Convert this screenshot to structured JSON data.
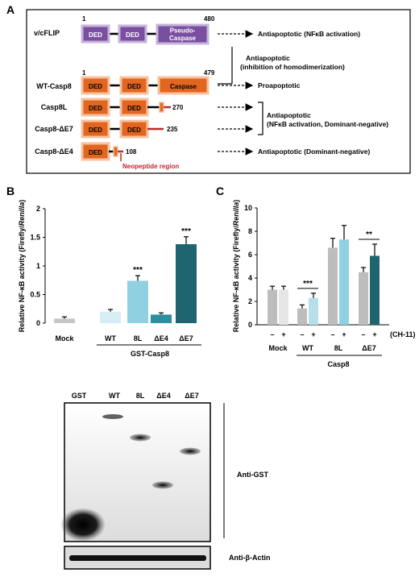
{
  "figure": {
    "panel_labels": {
      "a": "A",
      "b": "B",
      "c": "C"
    }
  },
  "panel_a": {
    "start_label": "1",
    "vflip_end": "480",
    "casp8_end": "479",
    "rows": [
      {
        "name": "v/cFLIP",
        "domains": [
          "DED",
          "DED",
          "Pseudo-\nCaspase"
        ],
        "arrow_label": "Antiapoptotic (NFκB activation)"
      },
      {
        "name": "WT-Casp8",
        "domains": [
          "DED",
          "DED",
          "Caspase"
        ],
        "arrow_label": "Proapoptotic"
      },
      {
        "name": "Casp8L",
        "domains": [
          "DED",
          "DED"
        ],
        "end": "270"
      },
      {
        "name": "Casp8-ΔE7",
        "domains": [
          "DED",
          "DED"
        ],
        "end": "235"
      },
      {
        "name": "Casp8-ΔE4",
        "domains": [
          "DED"
        ],
        "end": "108",
        "arrow_label": "Antiapoptotic (Dominant-negative)"
      }
    ],
    "bracket1_text": [
      "Antiapoptotic",
      "(inhibition of homodimerization)"
    ],
    "bracket2_text": [
      "Antiapoptotic",
      "(NFκB activation, Dominant-negative)"
    ],
    "neopeptide_label": "Neopeptide region",
    "colors": {
      "flip_fill": "#7a4fa0",
      "flip_border": "#c7b3dc",
      "casp_fill": "#e2661f",
      "casp_border": "#f6c29f",
      "neopeptide": "#c0282c"
    }
  },
  "panel_b": {
    "chart_data": {
      "type": "bar",
      "ylabel": "Relative NF-κB activity (Firefly/Renilla)",
      "ylim": [
        0,
        2
      ],
      "yticks": [
        0,
        0.5,
        1,
        1.5,
        2
      ],
      "categories": [
        "Mock",
        "WT",
        "8L",
        "ΔE4",
        "ΔE7"
      ],
      "values": [
        0.08,
        0.2,
        0.74,
        0.15,
        1.38
      ],
      "errors": [
        0.03,
        0.04,
        0.09,
        0.03,
        0.13
      ],
      "significance": [
        "",
        "",
        "***",
        "",
        "***"
      ],
      "colors": [
        "#c7c7c7",
        "#d6eef3",
        "#8fd1e0",
        "#2b8fa0",
        "#1f6570"
      ],
      "group_label": "GST-Casp8"
    },
    "blot": {
      "lanes": [
        "GST",
        "WT",
        "8L",
        "ΔE4",
        "ΔE7"
      ],
      "main_label": "Anti-GST",
      "actin_label": "Anti-β-Actin"
    }
  },
  "panel_c": {
    "chart_data": {
      "type": "bar",
      "ylabel": "Relative NF-κB activity (Firefly/Renilla)",
      "ylim": [
        0,
        10
      ],
      "yticks": [
        0,
        2,
        4,
        6,
        8,
        10
      ],
      "groups": [
        "Mock",
        "WT",
        "8L",
        "ΔE7"
      ],
      "series": [
        {
          "treatment": "–",
          "values": [
            3.0,
            1.4,
            6.6,
            4.5
          ],
          "errors": [
            0.3,
            0.3,
            0.8,
            0.4
          ],
          "colors": [
            "#bdbdbd",
            "#bdbdbd",
            "#bdbdbd",
            "#bdbdbd"
          ]
        },
        {
          "treatment": "+",
          "values": [
            3.0,
            2.3,
            7.3,
            5.9
          ],
          "errors": [
            0.3,
            0.4,
            1.2,
            1.0
          ],
          "colors": [
            "#e6e6e6",
            "#b6dfe9",
            "#8fd1e0",
            "#1f6570"
          ]
        }
      ],
      "significance": [
        {
          "group": "WT",
          "label": "***"
        },
        {
          "group": "ΔE7",
          "label": "**"
        }
      ],
      "treatment_label": "(CH-11)",
      "group_label": "Casp8"
    }
  }
}
